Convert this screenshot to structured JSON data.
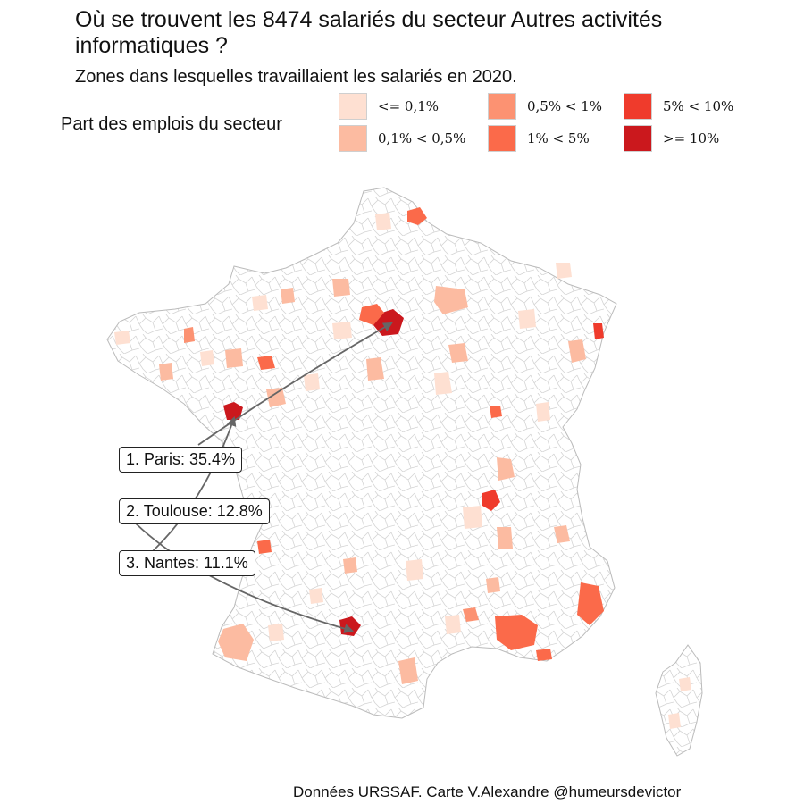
{
  "title": "Où se trouvent les 8474 salariés du secteur Autres activités informatiques ?",
  "subtitle": "Zones dans lesquelles travaillaient les salariés en 2020.",
  "legend": {
    "title": "Part des emplois du secteur",
    "items": [
      {
        "label": "<= 0,1%",
        "color": "#fee0d2"
      },
      {
        "label": "0,1% < 0,5%",
        "color": "#fcbba1"
      },
      {
        "label": "0,5% < 1%",
        "color": "#fc9272"
      },
      {
        "label": "1% < 5%",
        "color": "#fb6a4a"
      },
      {
        "label": "5% < 10%",
        "color": "#ef3b2c"
      },
      {
        "label": ">= 10%",
        "color": "#cb181d"
      }
    ]
  },
  "map": {
    "region": "France",
    "callouts": [
      {
        "rank": 1,
        "city": "Paris",
        "share": "35.4%",
        "label": "1. Paris: 35.4%"
      },
      {
        "rank": 2,
        "city": "Toulouse",
        "share": "12.8%",
        "label": "2. Toulouse: 12.8%"
      },
      {
        "rank": 3,
        "city": "Nantes",
        "share": "11.1%",
        "label": "3. Nantes: 11.1%"
      }
    ]
  },
  "caption": "Données URSSAF. Carte V.Alexandre @humeursdevictor"
}
